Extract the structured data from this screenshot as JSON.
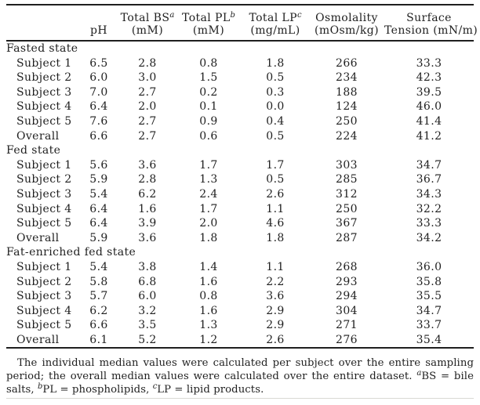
{
  "table": {
    "columns": [
      {
        "id": "row-label",
        "line1": "",
        "sup": "",
        "line2": ""
      },
      {
        "id": "ph",
        "line1": "",
        "sup": "",
        "line2": "pH"
      },
      {
        "id": "total-bs",
        "line1": "Total BS",
        "sup": "a",
        "line2": "(mM)"
      },
      {
        "id": "total-pl",
        "line1": "Total PL",
        "sup": "b",
        "line2": "(mM)"
      },
      {
        "id": "total-lp",
        "line1": "Total LP",
        "sup": "c",
        "line2": "(mg/mL)"
      },
      {
        "id": "osmolality",
        "line1": "Osmolality",
        "sup": "",
        "line2": "(mOsm/kg)"
      },
      {
        "id": "surface-tension",
        "line1": "Surface",
        "sup": "",
        "line2": "Tension (mN/m)"
      }
    ],
    "groups": [
      {
        "name": "Fasted state",
        "rows": [
          {
            "label": "Subject 1",
            "values": [
              "6.5",
              "2.8",
              "0.8",
              "1.8",
              "266",
              "33.3"
            ]
          },
          {
            "label": "Subject 2",
            "values": [
              "6.0",
              "3.0",
              "1.5",
              "0.5",
              "234",
              "42.3"
            ]
          },
          {
            "label": "Subject 3",
            "values": [
              "7.0",
              "2.7",
              "0.2",
              "0.3",
              "188",
              "39.5"
            ]
          },
          {
            "label": "Subject 4",
            "values": [
              "6.4",
              "2.0",
              "0.1",
              "0.0",
              "124",
              "46.0"
            ]
          },
          {
            "label": "Subject 5",
            "values": [
              "7.6",
              "2.7",
              "0.9",
              "0.4",
              "250",
              "41.4"
            ]
          },
          {
            "label": "Overall",
            "values": [
              "6.6",
              "2.7",
              "0.6",
              "0.5",
              "224",
              "41.2"
            ]
          }
        ]
      },
      {
        "name": "Fed state",
        "rows": [
          {
            "label": "Subject 1",
            "values": [
              "5.6",
              "3.6",
              "1.7",
              "1.7",
              "303",
              "34.7"
            ]
          },
          {
            "label": "Subject 2",
            "values": [
              "5.9",
              "2.8",
              "1.3",
              "0.5",
              "285",
              "36.7"
            ]
          },
          {
            "label": "Subject 3",
            "values": [
              "5.4",
              "6.2",
              "2.4",
              "2.6",
              "312",
              "34.3"
            ]
          },
          {
            "label": "Subject 4",
            "values": [
              "6.4",
              "1.6",
              "1.7",
              "1.1",
              "250",
              "32.2"
            ]
          },
          {
            "label": "Subject 5",
            "values": [
              "6.4",
              "3.9",
              "2.0",
              "4.6",
              "367",
              "33.3"
            ]
          },
          {
            "label": "Overall",
            "values": [
              "5.9",
              "3.6",
              "1.8",
              "1.8",
              "287",
              "34.2"
            ]
          }
        ]
      },
      {
        "name": "Fat-enriched fed state",
        "rows": [
          {
            "label": "Subject 1",
            "values": [
              "5.4",
              "3.8",
              "1.4",
              "1.1",
              "268",
              "36.0"
            ]
          },
          {
            "label": "Subject 2",
            "values": [
              "5.8",
              "6.8",
              "1.6",
              "2.2",
              "293",
              "35.8"
            ]
          },
          {
            "label": "Subject 3",
            "values": [
              "5.7",
              "6.0",
              "0.8",
              "3.6",
              "294",
              "35.5"
            ]
          },
          {
            "label": "Subject 4",
            "values": [
              "6.2",
              "3.2",
              "1.6",
              "2.9",
              "304",
              "34.7"
            ]
          },
          {
            "label": "Subject 5",
            "values": [
              "6.6",
              "3.5",
              "1.3",
              "2.9",
              "271",
              "33.7"
            ]
          },
          {
            "label": "Overall",
            "values": [
              "6.1",
              "5.2",
              "1.2",
              "2.6",
              "276",
              "35.4"
            ]
          }
        ]
      }
    ]
  },
  "footnote": {
    "segments": [
      {
        "sup": "",
        "text": "The individual median values were calculated per subject over the entire sampling period; the overall median values were calculated over the entire dataset. "
      },
      {
        "sup": "a",
        "text": "BS = bile salts, "
      },
      {
        "sup": "b",
        "text": "PL = phospholipids, "
      },
      {
        "sup": "c",
        "text": "LP = lipid products."
      }
    ]
  },
  "colors": {
    "text": "#1f1f1f",
    "rule": "#1f1f1f",
    "faint_rule": "#d9d9d4",
    "background": "#ffffff"
  }
}
